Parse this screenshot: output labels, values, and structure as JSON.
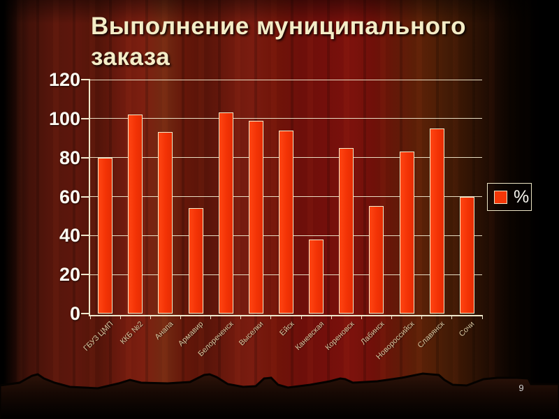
{
  "slide": {
    "title": "Выполнение муниципального заказа",
    "page_number": "9"
  },
  "chart_data": {
    "type": "bar",
    "title": "Выполнение муниципального заказа",
    "categories": [
      "ГБУЗ ЦМП",
      "ККБ №2",
      "Анапа",
      "Армавир",
      "Белореченск",
      "Выселки",
      "Ейск",
      "Каневская",
      "Кореновск",
      "Лабинск",
      "Новороссийск",
      "Славянск",
      "Сочи"
    ],
    "values": [
      80,
      102,
      93,
      54,
      103,
      99,
      94,
      38,
      85,
      55,
      83,
      95,
      60
    ],
    "series_name": "%",
    "xlabel": "",
    "ylabel": "",
    "ylim": [
      0,
      120
    ],
    "yticks": [
      0,
      20,
      40,
      60,
      80,
      100,
      120
    ],
    "grid": true,
    "legend_position": "right",
    "colors": {
      "bar_fill": "#f43708",
      "bar_outline": "#f3ecca",
      "grid_line": "#efe8cc",
      "y_tick_label": "#fdfbf2",
      "x_tick_label": "#dbc7a0",
      "title_text": "#f4edc7",
      "background_base": "#6d120b"
    }
  },
  "legend": {
    "label": "%"
  }
}
